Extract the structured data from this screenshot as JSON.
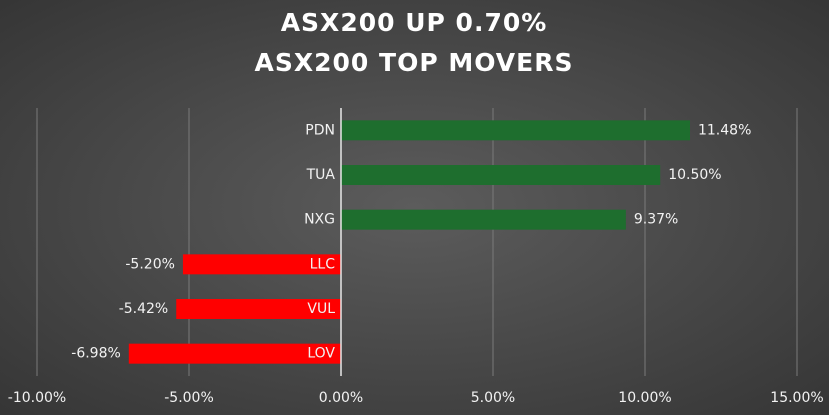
{
  "chart_data": {
    "type": "bar",
    "orientation": "horizontal",
    "title": "ASX200 UP 0.70%",
    "subtitle": "ASX200 TOP MOVERS",
    "categories": [
      "PDN",
      "TUA",
      "NXG",
      "LLC",
      "VUL",
      "LOV"
    ],
    "values": [
      11.48,
      10.5,
      9.37,
      -5.2,
      -5.42,
      -6.98
    ],
    "value_labels": [
      "11.48%",
      "10.50%",
      "9.37%",
      "-5.20%",
      "-5.42%",
      "-6.98%"
    ],
    "colors": [
      "#1e6e2e",
      "#1e6e2e",
      "#1e6e2e",
      "#ff0000",
      "#ff0000",
      "#ff0000"
    ],
    "xlim": [
      -10,
      15
    ],
    "xticks": [
      {
        "value": -10,
        "label": "-10.00%"
      },
      {
        "value": -5,
        "label": "-5.00%"
      },
      {
        "value": 0,
        "label": "0.00%"
      },
      {
        "value": 5,
        "label": "5.00%"
      },
      {
        "value": 10,
        "label": "10.00%"
      },
      {
        "value": 15,
        "label": "15.00%"
      }
    ],
    "grid": true
  }
}
